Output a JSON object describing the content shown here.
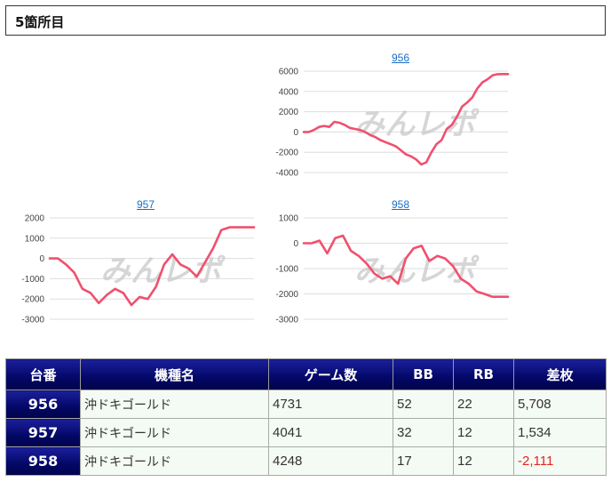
{
  "section": {
    "title": "5箇所目"
  },
  "watermark": "みんレポ",
  "colors": {
    "line": "#f0506e",
    "header_bg": "#030766",
    "negative": "#e8251c",
    "link": "#1a6fc4"
  },
  "chart_data": [
    {
      "type": "line",
      "title": "956",
      "yticks": [
        6000,
        4000,
        2000,
        0,
        -2000,
        -4000
      ],
      "ylim": [
        -4000,
        6000
      ],
      "x": [
        0,
        1,
        2,
        3,
        4,
        5,
        6,
        7,
        8,
        9,
        10,
        11,
        12,
        13,
        14,
        15,
        16,
        17,
        18,
        19,
        20,
        21,
        22,
        23,
        24,
        25,
        26,
        27,
        28,
        29,
        30,
        31,
        32,
        33,
        34,
        35,
        36,
        37,
        38,
        39,
        40
      ],
      "values": [
        0,
        0,
        200,
        500,
        600,
        500,
        1000,
        900,
        700,
        400,
        300,
        200,
        0,
        -300,
        -500,
        -800,
        -1000,
        -1200,
        -1400,
        -1800,
        -2200,
        -2400,
        -2700,
        -3200,
        -3000,
        -2000,
        -1200,
        -800,
        300,
        700,
        1500,
        2500,
        2900,
        3400,
        4300,
        4900,
        5200,
        5600,
        5700,
        5708,
        5708
      ]
    },
    {
      "type": "line",
      "title": "957",
      "yticks": [
        2000,
        1000,
        0,
        -1000,
        -2000,
        -3000
      ],
      "ylim": [
        -3000,
        2000
      ],
      "x": [
        0,
        1,
        2,
        3,
        4,
        5,
        6,
        7,
        8,
        9,
        10,
        11,
        12,
        13,
        14,
        15,
        16,
        17,
        18,
        19,
        20,
        21,
        22,
        23,
        24,
        25
      ],
      "values": [
        0,
        0,
        -300,
        -700,
        -1500,
        -1700,
        -2200,
        -1800,
        -1500,
        -1700,
        -2300,
        -1900,
        -2000,
        -1400,
        -300,
        200,
        -300,
        -500,
        -900,
        -200,
        500,
        1400,
        1534,
        1534,
        1534,
        1534
      ]
    },
    {
      "type": "line",
      "title": "958",
      "yticks": [
        1000,
        0,
        -1000,
        -2000,
        -3000
      ],
      "ylim": [
        -3000,
        1000
      ],
      "x": [
        0,
        1,
        2,
        3,
        4,
        5,
        6,
        7,
        8,
        9,
        10,
        11,
        12,
        13,
        14,
        15,
        16,
        17,
        18,
        19,
        20,
        21,
        22,
        23,
        24,
        25,
        26
      ],
      "values": [
        0,
        0,
        100,
        -400,
        200,
        300,
        -300,
        -500,
        -800,
        -1200,
        -1400,
        -1300,
        -1600,
        -600,
        -200,
        -100,
        -700,
        -500,
        -600,
        -900,
        -1400,
        -1600,
        -1900,
        -2000,
        -2111,
        -2111,
        -2111
      ]
    }
  ],
  "table": {
    "headers": [
      "台番",
      "機種名",
      "ゲーム数",
      "BB",
      "RB",
      "差枚"
    ],
    "rows": [
      {
        "no": "956",
        "name": "沖ドキゴールド",
        "games": "4731",
        "bb": "52",
        "rb": "22",
        "diff": "5,708"
      },
      {
        "no": "957",
        "name": "沖ドキゴールド",
        "games": "4041",
        "bb": "32",
        "rb": "12",
        "diff": "1,534"
      },
      {
        "no": "958",
        "name": "沖ドキゴールド",
        "games": "4248",
        "bb": "17",
        "rb": "12",
        "diff": "-2,111"
      }
    ]
  }
}
